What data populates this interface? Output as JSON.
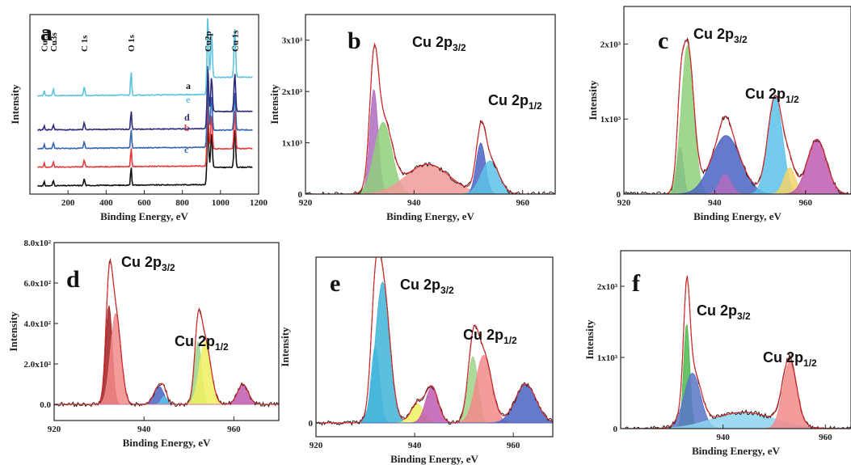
{
  "chart_data": [
    {
      "type": "line",
      "panel": "a",
      "xlabel": "Binding Energy, eV",
      "ylabel": "Intensity",
      "xlim": [
        0,
        1200
      ],
      "x_ticks": [
        "200",
        "400",
        "600",
        "800",
        "1000",
        "1200"
      ],
      "series": [
        {
          "name": "a",
          "color": "#111111",
          "offset": 0.0
        },
        {
          "name": "b",
          "color": "#e8393b",
          "offset": 0.12
        },
        {
          "name": "c",
          "color": "#3466b0",
          "offset": 0.24
        },
        {
          "name": "d",
          "color": "#2e2c7a",
          "offset": 0.36
        },
        {
          "name": "e",
          "color": "#5ec4dd",
          "offset": 0.58
        }
      ],
      "peaks": [
        {
          "label": "Cu 3p",
          "x": 75
        },
        {
          "label": "Cu3s",
          "x": 123
        },
        {
          "label": "C 1s",
          "x": 285
        },
        {
          "label": "O 1s",
          "x": 531
        },
        {
          "label": "Cu2p",
          "x": 933
        },
        {
          "label": "Cu 1s",
          "x": 1075
        }
      ]
    },
    {
      "type": "area",
      "panel": "b",
      "xlabel": "Binding Energy, eV",
      "ylabel": "Intensity",
      "xlim": [
        920,
        966
      ],
      "ylim": [
        0,
        3500
      ],
      "x_ticks": [
        920,
        940,
        960
      ],
      "y_ticks": [
        {
          "v": 0,
          "label": "0"
        },
        {
          "v": 1000,
          "label": "1x10³"
        },
        {
          "v": 2000,
          "label": "2x10³"
        },
        {
          "v": 3000,
          "label": "3x10³"
        }
      ],
      "labels": [
        {
          "text": "Cu 2p",
          "sub": "3/2"
        },
        {
          "text": "Cu 2p",
          "sub": "1/2"
        }
      ],
      "components": [
        {
          "center": 932.6,
          "fwhm": 1.8,
          "height": 2050,
          "color": "#b06cc0"
        },
        {
          "center": 934.3,
          "fwhm": 3.8,
          "height": 1400,
          "color": "#8fd07a"
        },
        {
          "center": 942.5,
          "fwhm": 9.5,
          "height": 580,
          "color": "#f29a9a"
        },
        {
          "center": 952.3,
          "fwhm": 2.0,
          "height": 1000,
          "color": "#4b63c2"
        },
        {
          "center": 954.0,
          "fwhm": 3.8,
          "height": 650,
          "color": "#5cc2e8"
        }
      ]
    },
    {
      "type": "area",
      "panel": "c",
      "xlabel": "Binding Energy, eV",
      "ylabel": "Intensity",
      "xlim": [
        920,
        970
      ],
      "ylim": [
        0,
        2500
      ],
      "x_ticks": [
        920,
        940,
        960
      ],
      "y_ticks": [
        {
          "v": 0,
          "label": "0"
        },
        {
          "v": 1000,
          "label": "1x10³"
        },
        {
          "v": 2000,
          "label": "2x10³"
        }
      ],
      "labels": [
        {
          "text": "Cu 2p",
          "sub": "3/2"
        },
        {
          "text": "Cu 2p",
          "sub": "1/2"
        }
      ],
      "components": [
        {
          "center": 932.4,
          "fwhm": 1.6,
          "height": 620,
          "color": "#4b63c2"
        },
        {
          "center": 934.0,
          "fwhm": 3.2,
          "height": 1980,
          "color": "#8fd07a"
        },
        {
          "center": 942.5,
          "fwhm": 7.5,
          "height": 780,
          "color": "#4b63c2"
        },
        {
          "center": 942.3,
          "fwhm": 3.0,
          "height": 260,
          "color": "#b06cc0"
        },
        {
          "center": 953.3,
          "fwhm": 3.8,
          "height": 1300,
          "color": "#5cc2e8"
        },
        {
          "center": 956.5,
          "fwhm": 3.0,
          "height": 350,
          "color": "#f2d36a"
        },
        {
          "center": 962.5,
          "fwhm": 5.0,
          "height": 730,
          "color": "#c05ab0"
        }
      ]
    },
    {
      "type": "area",
      "panel": "d",
      "xlabel": "Binding Energy, eV",
      "ylabel": "Intensity",
      "xlim": [
        920,
        970
      ],
      "ylim": [
        -80,
        800
      ],
      "x_ticks": [
        920,
        940,
        960
      ],
      "y_ticks": [
        {
          "v": 0,
          "label": "0.0"
        },
        {
          "v": 200,
          "label": "2.0x10²"
        },
        {
          "v": 400,
          "label": "4.0x10²"
        },
        {
          "v": 600,
          "label": "6.0x10²"
        },
        {
          "v": 800,
          "label": "8.0x10²"
        }
      ],
      "labels": [
        {
          "text": "Cu 2p",
          "sub": "3/2"
        },
        {
          "text": "Cu 2p",
          "sub": "1/2"
        }
      ],
      "components": [
        {
          "center": 932.2,
          "fwhm": 1.7,
          "height": 490,
          "color": "#a01e20"
        },
        {
          "center": 933.7,
          "fwhm": 2.7,
          "height": 450,
          "color": "#f28a8a"
        },
        {
          "center": 943.3,
          "fwhm": 2.6,
          "height": 90,
          "color": "#4b63c2"
        },
        {
          "center": 944.5,
          "fwhm": 1.5,
          "height": 40,
          "color": "#5cc2e8"
        },
        {
          "center": 952.0,
          "fwhm": 1.8,
          "height": 310,
          "color": "#9ed48a"
        },
        {
          "center": 953.6,
          "fwhm": 3.0,
          "height": 310,
          "color": "#f0f060"
        },
        {
          "center": 962.0,
          "fwhm": 2.8,
          "height": 100,
          "color": "#c05ab0"
        }
      ]
    },
    {
      "type": "area",
      "panel": "e",
      "xlabel": "Binding Energy, eV",
      "ylabel": "Intensity",
      "xlim": [
        920,
        968
      ],
      "ylim": [
        -100,
        1200
      ],
      "x_ticks": [
        920,
        940,
        960
      ],
      "y_ticks": [
        {
          "v": 0,
          "label": "0"
        }
      ],
      "labels": [
        {
          "text": "Cu 2p",
          "sub": "3/2"
        },
        {
          "text": "Cu 2p",
          "sub": "1/2"
        }
      ],
      "components": [
        {
          "center": 932.0,
          "fwhm": 2.0,
          "height": 550,
          "color": "#5cc2e8"
        },
        {
          "center": 933.5,
          "fwhm": 3.4,
          "height": 1020,
          "color": "#3fb4d8"
        },
        {
          "center": 940.5,
          "fwhm": 3.0,
          "height": 140,
          "color": "#f0f060"
        },
        {
          "center": 943.5,
          "fwhm": 3.0,
          "height": 260,
          "color": "#c05ab0"
        },
        {
          "center": 951.8,
          "fwhm": 2.4,
          "height": 480,
          "color": "#9ed48a"
        },
        {
          "center": 954.0,
          "fwhm": 3.8,
          "height": 490,
          "color": "#f28a8a"
        },
        {
          "center": 962.5,
          "fwhm": 5.0,
          "height": 280,
          "color": "#4b63c2"
        }
      ]
    },
    {
      "type": "area",
      "panel": "f",
      "xlabel": "Binding Energy, eV",
      "ylabel": "Intensity",
      "xlim": [
        920,
        965
      ],
      "ylim": [
        0,
        2500
      ],
      "x_ticks": [
        940,
        960
      ],
      "y_ticks": [
        {
          "v": 0,
          "label": "0"
        },
        {
          "v": 1000,
          "label": "1x10³"
        },
        {
          "v": 2000,
          "label": "2x10³"
        }
      ],
      "labels": [
        {
          "text": "Cu 2p",
          "sub": "3/2"
        },
        {
          "text": "Cu 2p",
          "sub": "1/2"
        }
      ],
      "components": [
        {
          "center": 932.9,
          "fwhm": 1.4,
          "height": 1480,
          "color": "#4cb84c"
        },
        {
          "center": 934.0,
          "fwhm": 3.8,
          "height": 780,
          "color": "#5876c8"
        },
        {
          "center": 944.0,
          "fwhm": 14.0,
          "height": 230,
          "color": "#8dd4ee"
        },
        {
          "center": 953.0,
          "fwhm": 3.2,
          "height": 930,
          "color": "#f28a8a"
        }
      ]
    }
  ]
}
